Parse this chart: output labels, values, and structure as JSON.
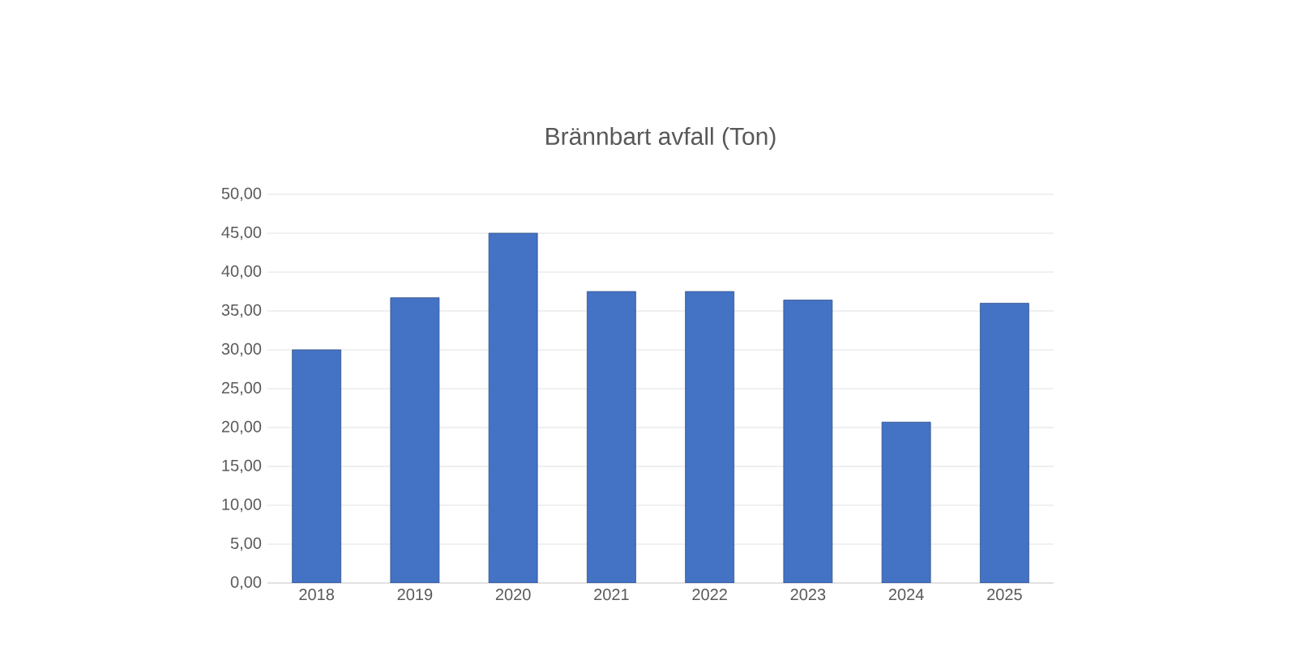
{
  "chart_data": {
    "type": "bar",
    "title": "Brännbart avfall (Ton)",
    "categories": [
      "2018",
      "2019",
      "2020",
      "2021",
      "2022",
      "2023",
      "2024",
      "2025"
    ],
    "values": [
      30.0,
      36.7,
      45.0,
      37.5,
      37.5,
      36.4,
      20.7,
      36.0
    ],
    "color": "#4472c4",
    "ylim": [
      0,
      50
    ],
    "yticks": [
      {
        "value": 0,
        "label": "0,00"
      },
      {
        "value": 5,
        "label": "5,00"
      },
      {
        "value": 10,
        "label": "10,00"
      },
      {
        "value": 15,
        "label": "15,00"
      },
      {
        "value": 20,
        "label": "20,00"
      },
      {
        "value": 25,
        "label": "25,00"
      },
      {
        "value": 30,
        "label": "30,00"
      },
      {
        "value": 35,
        "label": "35,00"
      },
      {
        "value": 40,
        "label": "40,00"
      },
      {
        "value": 45,
        "label": "45,00"
      },
      {
        "value": 50,
        "label": "50,00"
      }
    ],
    "grid": "y"
  }
}
